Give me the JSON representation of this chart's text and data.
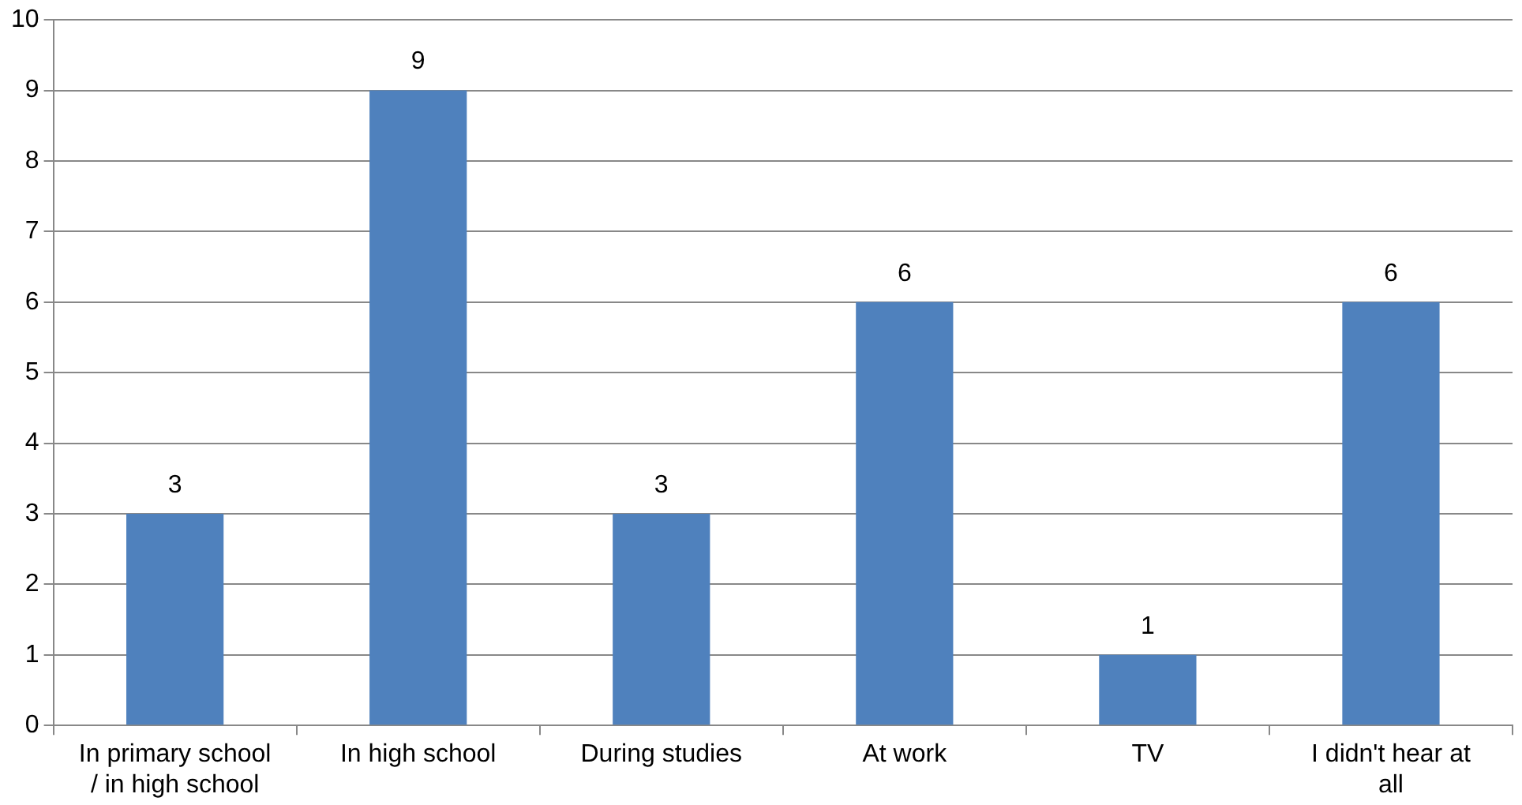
{
  "chart_data": {
    "type": "bar",
    "categories": [
      "In primary school / in high school",
      "In high school",
      "During studies",
      "At work",
      "TV",
      "I didn't hear at all"
    ],
    "values": [
      3,
      9,
      3,
      6,
      1,
      6
    ],
    "color": "#4f81bd",
    "ylim": [
      0,
      10
    ],
    "yticks": [
      0,
      1,
      2,
      3,
      4,
      5,
      6,
      7,
      8,
      9,
      10
    ],
    "grid": "y",
    "legend": false,
    "data_labels": true
  }
}
